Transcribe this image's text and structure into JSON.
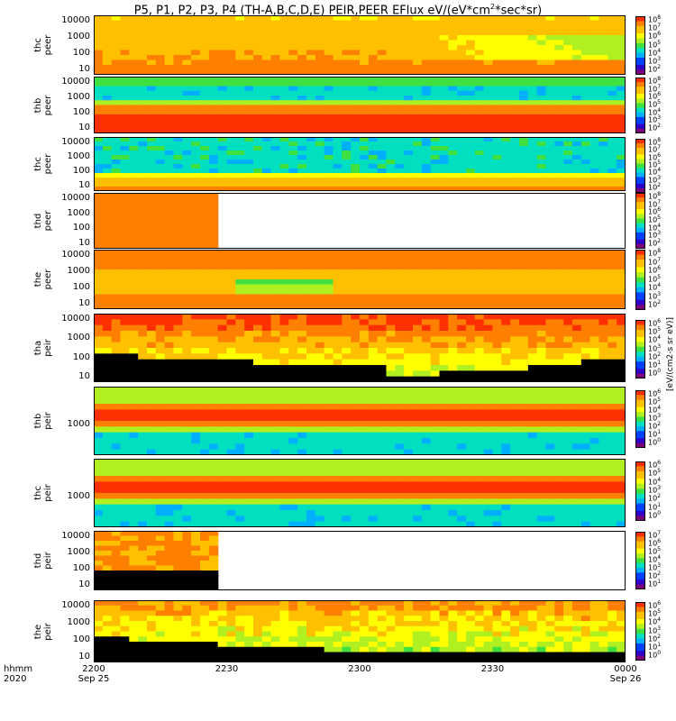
{
  "title": {
    "main": "P5, P1, P2, P3, P4 (TH-A,B,C,D,E) PEIR,PEER EFlux eV/(eV*cm",
    "sup": "2",
    "tail": "*sec*sr)"
  },
  "colorbar_unit": "[eV/(cm2-s sr eV)]",
  "x_axis": {
    "prefix": "hhmm",
    "prefix2": "2020",
    "ticks": [
      {
        "label": "2200",
        "date": "Sep 25"
      },
      {
        "label": "2230",
        "date": ""
      },
      {
        "label": "2300",
        "date": ""
      },
      {
        "label": "2330",
        "date": ""
      },
      {
        "label": "0000",
        "date": "Sep 26"
      }
    ]
  },
  "chart_data": {
    "type": "heatmap",
    "title": "P5, P1, P2, P3, P4 (TH-A,B,C,D,E) PEIR,PEER EFlux eV/(eV*cm2*sec*sr)",
    "x_range": [
      "2020-09-25 22:00",
      "2020-09-26 00:00"
    ],
    "x_ticks": [
      "2200",
      "2230",
      "2300",
      "2330",
      "0000"
    ],
    "y_scale": "log",
    "colormap": "rainbow",
    "panels": [
      {
        "label": "thc peer",
        "yticks": [
          "10000",
          "1000",
          "100",
          "10"
        ],
        "cbar_ticks": [
          "10^8",
          "10^7",
          "10^6",
          "10^5",
          "10^4",
          "10^3",
          "10^2"
        ],
        "data_until": "0000"
      },
      {
        "label": "thb peer",
        "yticks": [
          "10000",
          "1000",
          "100",
          "10"
        ],
        "cbar_ticks": [
          "10^8",
          "10^7",
          "10^6",
          "10^5",
          "10^4",
          "10^3",
          "10^2"
        ],
        "data_until": "0000"
      },
      {
        "label": "thc peer",
        "yticks": [
          "10000",
          "1000",
          "100",
          "10"
        ],
        "cbar_ticks": [
          "10^8",
          "10^7",
          "10^6",
          "10^5",
          "10^4",
          "10^3",
          "10^2"
        ],
        "data_until": "0000"
      },
      {
        "label": "thd peer",
        "yticks": [
          "10000",
          "1000",
          "100",
          "10"
        ],
        "cbar_ticks": [
          "10^8",
          "10^7",
          "10^6",
          "10^5",
          "10^4",
          "10^3",
          "10^2"
        ],
        "data_until": "2228"
      },
      {
        "label": "the peer",
        "yticks": [
          "10000",
          "1000",
          "100",
          "10"
        ],
        "cbar_ticks": [
          "10^8",
          "10^7",
          "10^6",
          "10^5",
          "10^4",
          "10^3",
          "10^2"
        ],
        "data_until": "0000"
      },
      {
        "label": "tha peir",
        "yticks": [
          "10000",
          "1000",
          "100",
          "10"
        ],
        "cbar_ticks": [
          "10^6",
          "10^5",
          "10^4",
          "10^3",
          "10^2",
          "10^1",
          "10^0"
        ],
        "data_until": "0000"
      },
      {
        "label": "thb peir",
        "yticks": [
          "1000"
        ],
        "cbar_ticks": [
          "10^6",
          "10^5",
          "10^4",
          "10^3",
          "10^2",
          "10^1",
          "10^0"
        ],
        "data_until": "0000"
      },
      {
        "label": "thc peir",
        "yticks": [
          "1000"
        ],
        "cbar_ticks": [
          "10^6",
          "10^5",
          "10^4",
          "10^3",
          "10^2",
          "10^1",
          "10^0"
        ],
        "data_until": "0000"
      },
      {
        "label": "thd peir",
        "yticks": [
          "10000",
          "1000",
          "100",
          "10"
        ],
        "cbar_ticks": [
          "10^7",
          "10^6",
          "10^5",
          "10^4",
          "10^3",
          "10^2",
          "10^1"
        ],
        "data_until": "2228"
      },
      {
        "label": "the peir",
        "yticks": [
          "10000",
          "1000",
          "100",
          "10"
        ],
        "cbar_ticks": [
          "10^6",
          "10^5",
          "10^4",
          "10^3",
          "10^2",
          "10^1",
          "10^0"
        ],
        "data_until": "0000"
      }
    ]
  }
}
